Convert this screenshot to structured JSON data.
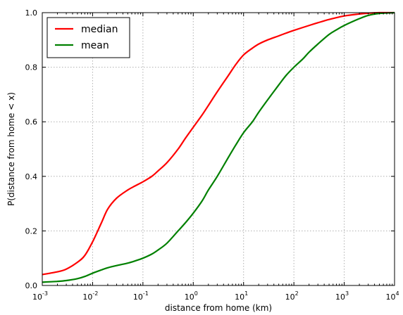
{
  "chart_data": {
    "type": "line",
    "xscale": "log",
    "xlim": [
      0.001,
      10000
    ],
    "ylim": [
      0,
      1
    ],
    "xlabel": "distance from home (km)",
    "ylabel": "P(distance from home < x)",
    "grid": true,
    "legend_position": "top-left",
    "x_ticks": [
      0.001,
      0.01,
      0.1,
      1,
      10,
      100,
      1000,
      10000
    ],
    "x_tick_labels": [
      {
        "base": "10",
        "exp": "-3"
      },
      {
        "base": "10",
        "exp": "-2"
      },
      {
        "base": "10",
        "exp": "-1"
      },
      {
        "base": "10",
        "exp": "0"
      },
      {
        "base": "10",
        "exp": "1"
      },
      {
        "base": "10",
        "exp": "2"
      },
      {
        "base": "10",
        "exp": "3"
      },
      {
        "base": "10",
        "exp": "4"
      }
    ],
    "y_ticks": [
      0,
      0.2,
      0.4,
      0.6,
      0.8,
      1.0
    ],
    "y_tick_labels": [
      "0.0",
      "0.2",
      "0.4",
      "0.6",
      "0.8",
      "1.0"
    ],
    "series": [
      {
        "name": "median",
        "color": "#ff0000",
        "x": [
          0.001,
          0.002,
          0.003,
          0.005,
          0.007,
          0.01,
          0.015,
          0.02,
          0.03,
          0.05,
          0.07,
          0.1,
          0.15,
          0.2,
          0.3,
          0.5,
          0.7,
          1,
          1.5,
          2,
          3,
          5,
          7,
          10,
          15,
          20,
          30,
          50,
          70,
          100,
          200,
          300,
          500,
          1000,
          2000,
          3000,
          5000,
          10000
        ],
        "y": [
          0.04,
          0.05,
          0.06,
          0.085,
          0.11,
          0.16,
          0.23,
          0.28,
          0.32,
          0.35,
          0.365,
          0.38,
          0.4,
          0.42,
          0.45,
          0.5,
          0.54,
          0.58,
          0.625,
          0.66,
          0.71,
          0.77,
          0.81,
          0.845,
          0.87,
          0.885,
          0.9,
          0.915,
          0.925,
          0.935,
          0.953,
          0.963,
          0.975,
          0.988,
          0.995,
          0.998,
          1.0,
          1.0
        ]
      },
      {
        "name": "mean",
        "color": "#008000",
        "x": [
          0.001,
          0.002,
          0.003,
          0.005,
          0.007,
          0.01,
          0.015,
          0.02,
          0.03,
          0.05,
          0.07,
          0.1,
          0.15,
          0.2,
          0.3,
          0.5,
          0.7,
          1,
          1.5,
          2,
          3,
          5,
          7,
          10,
          15,
          20,
          30,
          50,
          70,
          100,
          150,
          200,
          300,
          500,
          700,
          1000,
          2000,
          3000,
          5000,
          10000
        ],
        "y": [
          0.012,
          0.015,
          0.018,
          0.025,
          0.033,
          0.045,
          0.057,
          0.065,
          0.073,
          0.082,
          0.09,
          0.1,
          0.115,
          0.13,
          0.155,
          0.2,
          0.23,
          0.265,
          0.31,
          0.35,
          0.4,
          0.47,
          0.515,
          0.56,
          0.6,
          0.635,
          0.68,
          0.735,
          0.77,
          0.8,
          0.83,
          0.855,
          0.885,
          0.92,
          0.937,
          0.953,
          0.978,
          0.99,
          0.997,
          1.0
        ]
      }
    ]
  }
}
